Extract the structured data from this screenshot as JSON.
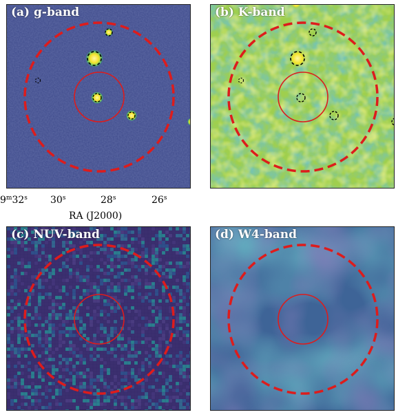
{
  "panels": [
    {
      "id": "g",
      "label": "(a) g-band"
    },
    {
      "id": "k",
      "label": "(b) K-band"
    },
    {
      "id": "nuv",
      "label": "(c) NUV-band"
    },
    {
      "id": "w4",
      "label": "(d) W4-band"
    }
  ],
  "axis": {
    "xlabel": "RA (J2000)",
    "ticks": [
      {
        "base": "9",
        "sup1": "m",
        "mid": "32",
        "sup2": "s"
      },
      {
        "base": "",
        "sup1": "",
        "mid": "30",
        "sup2": "s"
      },
      {
        "base": "",
        "sup1": "",
        "mid": "28",
        "sup2": "s"
      },
      {
        "base": "",
        "sup1": "",
        "mid": "26",
        "sup2": "s"
      }
    ]
  },
  "colors": {
    "aperture": "#dd1c1c",
    "g_bg": "#3d4a8c",
    "k_bg": "#9ecf4a",
    "nuv_bg": "#3a2f6e",
    "w4_bg": "#3f6598",
    "source": "#f5e52a"
  }
}
